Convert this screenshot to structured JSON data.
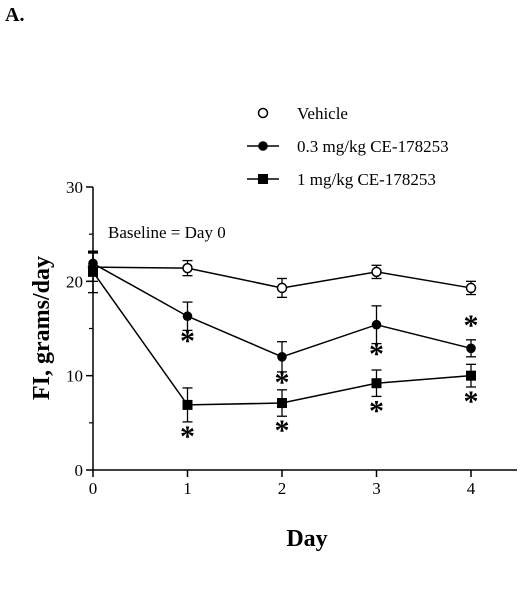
{
  "panel_label": "A.",
  "chart_data": {
    "type": "line",
    "xlabel": "Day",
    "ylabel": "FI, grams/day",
    "xlim": [
      0,
      4
    ],
    "ylim": [
      0,
      30
    ],
    "x": [
      0,
      1,
      2,
      3,
      4
    ],
    "xticks": [
      "0",
      "1",
      "2",
      "3",
      "4"
    ],
    "yticks": [
      "0",
      "10",
      "20",
      "30"
    ],
    "annotation": "Baseline = Day 0",
    "legend_position": "top-right",
    "significance_marker": "*",
    "grid": false,
    "series": [
      {
        "name": "Vehicle",
        "marker": "open-circle",
        "values": [
          21.5,
          21.4,
          19.3,
          21.0,
          19.3
        ],
        "errors": [
          1.5,
          0.8,
          1.0,
          0.7,
          0.7
        ],
        "significant": [
          false,
          false,
          false,
          false,
          false
        ]
      },
      {
        "name": "0.3 mg/kg CE-178253",
        "marker": "filled-circle",
        "values": [
          21.9,
          16.3,
          12.0,
          15.4,
          12.9
        ],
        "errors": [
          1.2,
          1.5,
          1.6,
          2.0,
          0.9
        ],
        "significant": [
          false,
          true,
          true,
          true,
          true
        ]
      },
      {
        "name": "1 mg/kg CE-178253",
        "marker": "filled-square",
        "values": [
          21.0,
          6.9,
          7.1,
          9.2,
          10.0
        ],
        "errors": [
          2.2,
          1.8,
          1.4,
          1.4,
          1.2
        ],
        "significant": [
          false,
          true,
          true,
          true,
          true
        ]
      }
    ]
  }
}
